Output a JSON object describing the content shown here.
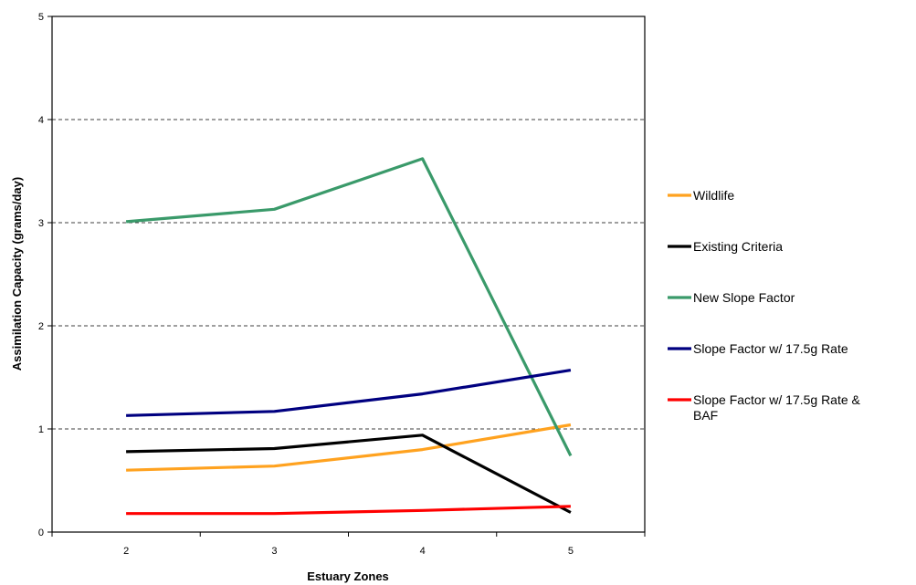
{
  "chart_data": {
    "type": "line",
    "title": "",
    "xlabel": "Estuary Zones",
    "ylabel": "Assimilation Capacity (grams/day)",
    "categories": [
      "2",
      "3",
      "4",
      "5"
    ],
    "ylim": [
      0,
      5
    ],
    "yticks": [
      "0",
      "1",
      "2",
      "3",
      "4",
      "5"
    ],
    "grid": "horizontal dashed",
    "legend_position": "right",
    "series": [
      {
        "name": "Wildlife",
        "color": "#ffa21f",
        "values": [
          0.6,
          0.64,
          0.8,
          1.04
        ]
      },
      {
        "name": "Existing Criteria",
        "color": "#000000",
        "values": [
          0.78,
          0.81,
          0.94,
          0.19
        ]
      },
      {
        "name": "New Slope Factor",
        "color": "#3a9a6a",
        "values": [
          3.01,
          3.13,
          3.62,
          0.74
        ]
      },
      {
        "name": "Slope Factor w/ 17.5g Rate",
        "color": "#000080",
        "values": [
          1.13,
          1.17,
          1.34,
          1.57
        ]
      },
      {
        "name": "Slope Factor w/ 17.5g Rate & BAF",
        "color": "#ff0000",
        "values": [
          0.18,
          0.18,
          0.21,
          0.25
        ]
      }
    ]
  }
}
